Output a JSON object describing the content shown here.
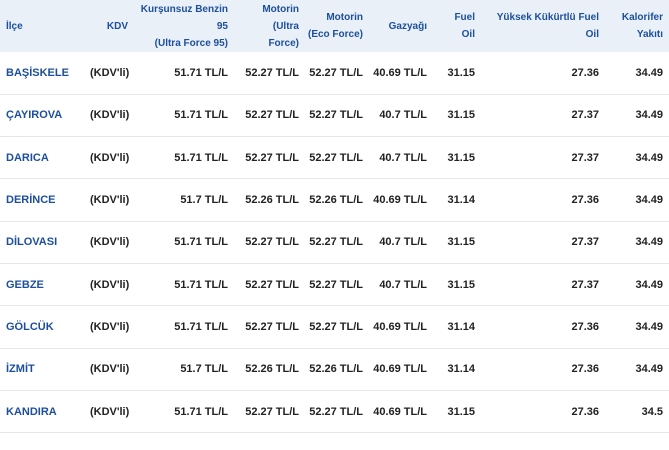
{
  "headers": [
    "İlçe",
    "KDV",
    "Kurşunsuz Benzin 95 (Ultra Force 95)",
    "Motorin (Ultra Force)",
    "Motorin (Eco Force)",
    "Gazyağı",
    "Fuel Oil",
    "Yüksek Kükürtlü Fuel Oil",
    "Kalorifer Yakıtı"
  ],
  "header_lines": {
    "ilce": [
      "İlçe"
    ],
    "kdv": [
      "KDV"
    ],
    "benzin": [
      "Kurşunsuz Benzin",
      "95",
      "(Ultra Force 95)"
    ],
    "motorin_ultra": [
      "Motorin",
      "(Ultra",
      "Force)"
    ],
    "motorin_eco": [
      "Motorin",
      "(Eco Force)"
    ],
    "gazyagi": [
      "Gazyağı"
    ],
    "fuel_oil": [
      "Fuel",
      "Oil"
    ],
    "yuksek": [
      "Yüksek Kükürtlü Fuel",
      "Oil"
    ],
    "kalorifer": [
      "Kalorifer",
      "Yakıtı"
    ]
  },
  "rows": [
    [
      "BAŞİSKELE",
      "(KDV'li)",
      "51.71 TL/L",
      "52.27 TL/L",
      "52.27 TL/L",
      "40.69 TL/L",
      "31.15",
      "27.36",
      "34.49"
    ],
    [
      "ÇAYIROVA",
      "(KDV'li)",
      "51.71 TL/L",
      "52.27 TL/L",
      "52.27 TL/L",
      "40.7 TL/L",
      "31.15",
      "27.37",
      "34.49"
    ],
    [
      "DARICA",
      "(KDV'li)",
      "51.71 TL/L",
      "52.27 TL/L",
      "52.27 TL/L",
      "40.7 TL/L",
      "31.15",
      "27.37",
      "34.49"
    ],
    [
      "DERİNCE",
      "(KDV'li)",
      "51.7 TL/L",
      "52.26 TL/L",
      "52.26 TL/L",
      "40.69 TL/L",
      "31.14",
      "27.36",
      "34.49"
    ],
    [
      "DİLOVASI",
      "(KDV'li)",
      "51.71 TL/L",
      "52.27 TL/L",
      "52.27 TL/L",
      "40.7 TL/L",
      "31.15",
      "27.37",
      "34.49"
    ],
    [
      "GEBZE",
      "(KDV'li)",
      "51.71 TL/L",
      "52.27 TL/L",
      "52.27 TL/L",
      "40.7 TL/L",
      "31.15",
      "27.37",
      "34.49"
    ],
    [
      "GÖLCÜK",
      "(KDV'li)",
      "51.71 TL/L",
      "52.27 TL/L",
      "52.27 TL/L",
      "40.69 TL/L",
      "31.14",
      "27.36",
      "34.49"
    ],
    [
      "İZMİT",
      "(KDV'li)",
      "51.7 TL/L",
      "52.26 TL/L",
      "52.26 TL/L",
      "40.69 TL/L",
      "31.14",
      "27.36",
      "34.49"
    ],
    [
      "KANDIRA",
      "(KDV'li)",
      "51.71 TL/L",
      "52.27 TL/L",
      "52.27 TL/L",
      "40.69 TL/L",
      "31.15",
      "27.36",
      "34.5"
    ]
  ],
  "colors": {
    "header_bg": "#e9f0f8",
    "accent": "#1d4f9c",
    "row_divider": "#e6e6e6"
  }
}
